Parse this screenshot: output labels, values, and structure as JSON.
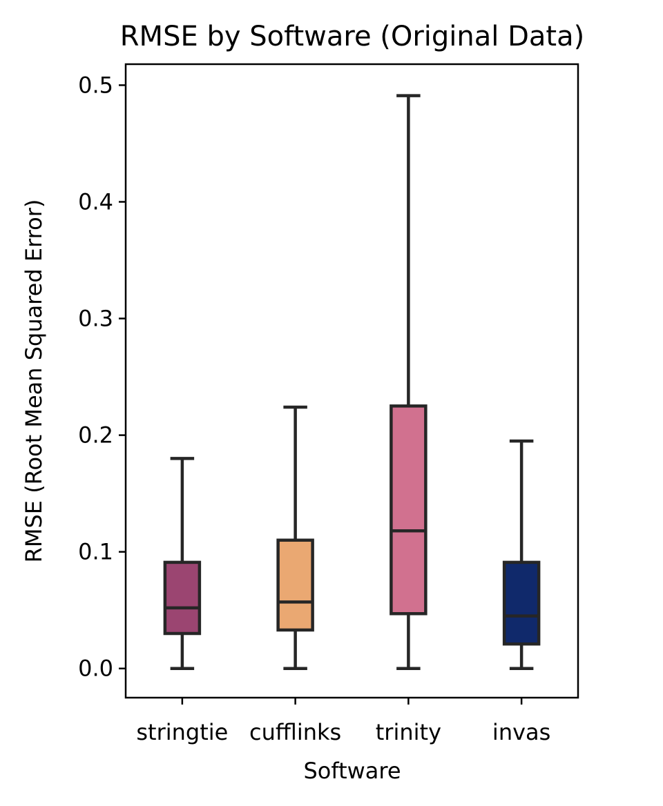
{
  "chart_data": {
    "type": "box",
    "title": "RMSE by Software (Original Data)",
    "xlabel": "Software",
    "ylabel": "RMSE (Root Mean Squared Error)",
    "ylim": [
      -0.025,
      0.518
    ],
    "yticks": [
      "0.0",
      "0.1",
      "0.2",
      "0.3",
      "0.4",
      "0.5"
    ],
    "ytick_values": [
      0.0,
      0.1,
      0.2,
      0.3,
      0.4,
      0.5
    ],
    "grid": false,
    "categories": [
      "stringtie",
      "cufflinks",
      "trinity",
      "invas"
    ],
    "boxes": [
      {
        "category": "stringtie",
        "whisker_low": 0.0,
        "q1": 0.03,
        "median": 0.052,
        "q3": 0.091,
        "whisker_high": 0.18,
        "color": "#9b4571"
      },
      {
        "category": "cufflinks",
        "whisker_low": 0.0,
        "q1": 0.033,
        "median": 0.057,
        "q3": 0.11,
        "whisker_high": 0.224,
        "color": "#eaa872"
      },
      {
        "category": "trinity",
        "whisker_low": 0.0,
        "q1": 0.047,
        "median": 0.118,
        "q3": 0.225,
        "whisker_high": 0.491,
        "color": "#d1718f"
      },
      {
        "category": "invas",
        "whisker_low": 0.0,
        "q1": 0.021,
        "median": 0.045,
        "q3": 0.091,
        "whisker_high": 0.195,
        "color": "#10296b"
      }
    ]
  }
}
